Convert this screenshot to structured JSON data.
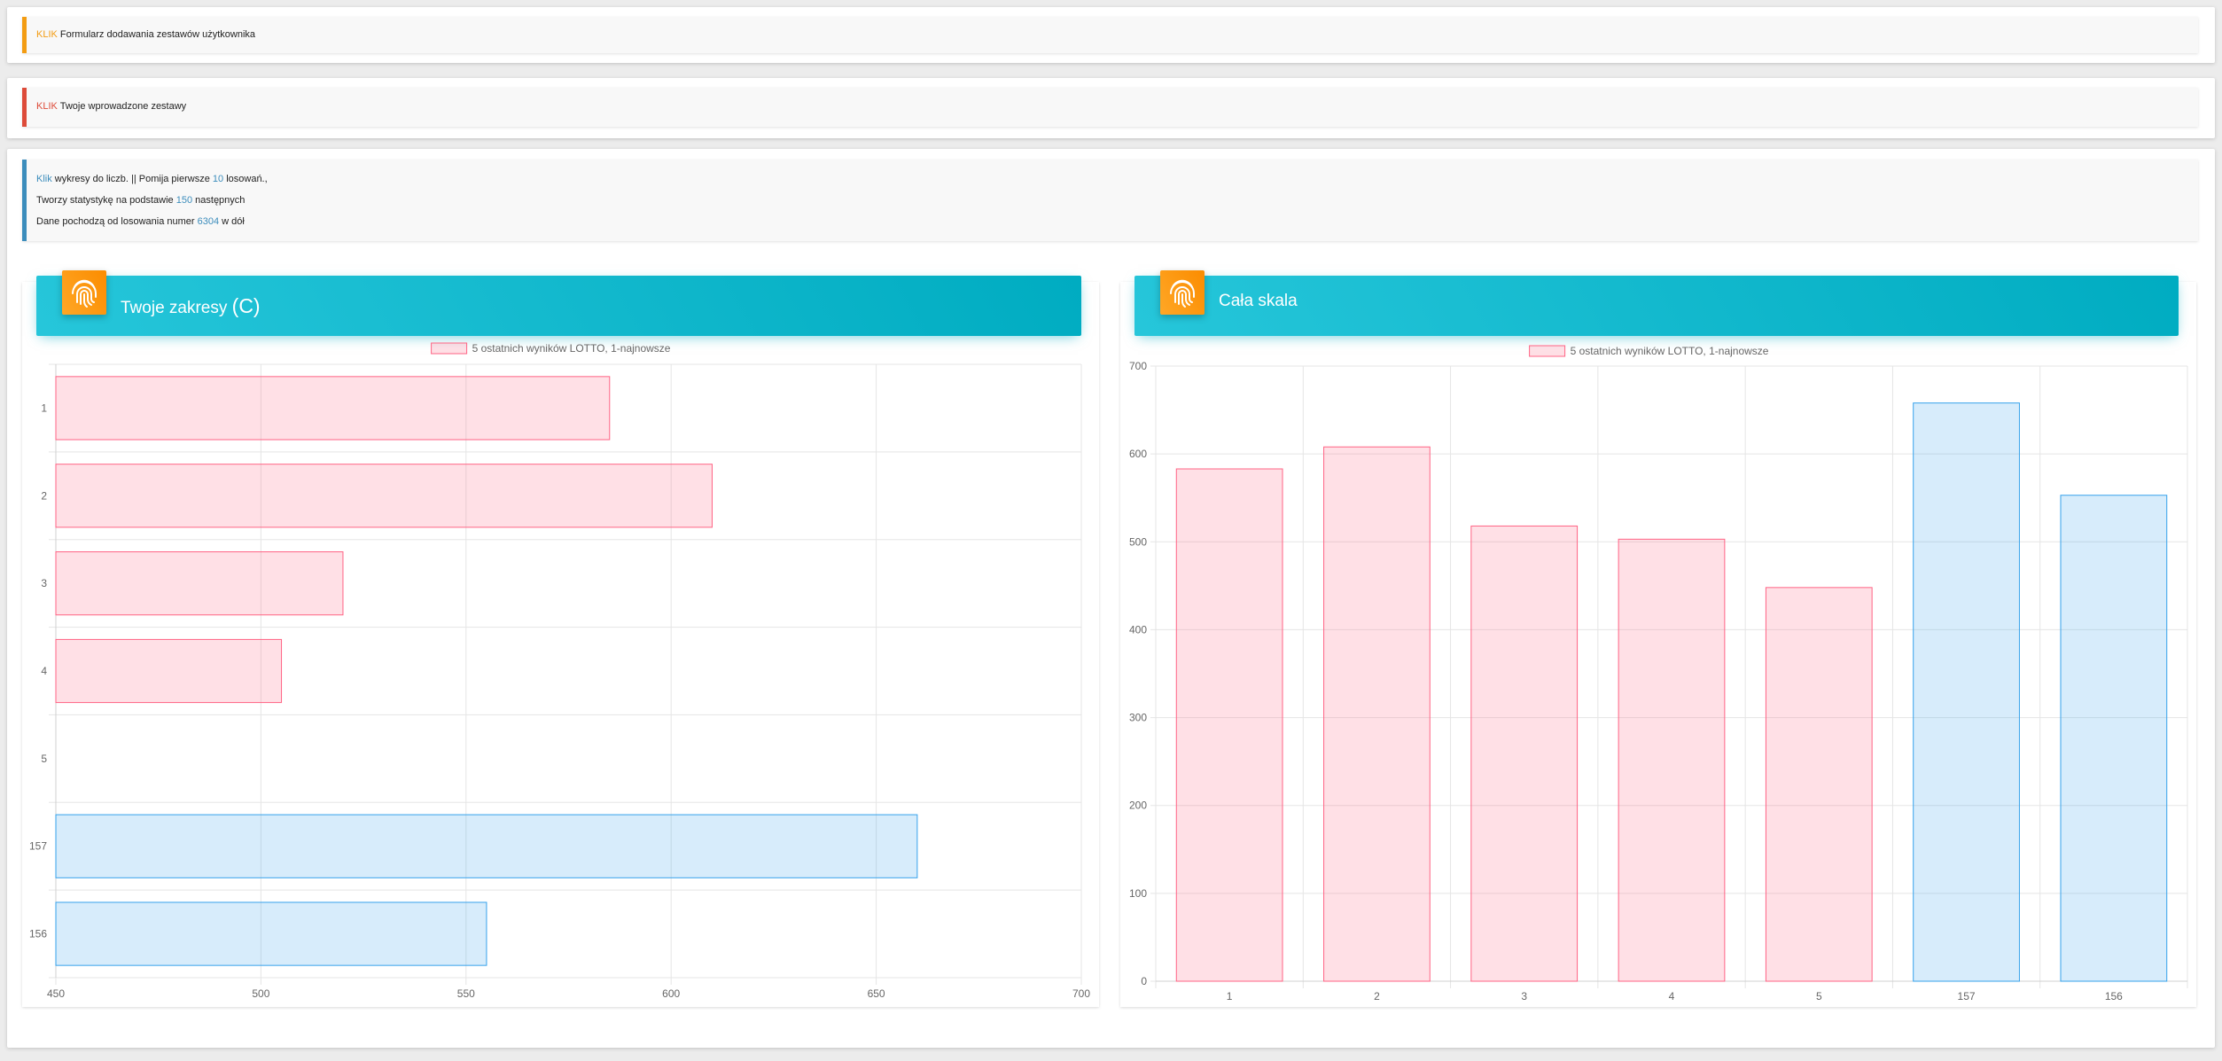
{
  "form_callout": {
    "link": "KLIK",
    "text": " Formularz dodawania zestawów użytkownika"
  },
  "sets_callout": {
    "link": "KLIK",
    "text": " Twoje wprowadzone zestawy"
  },
  "info_callout": {
    "line1": {
      "link": "Klik",
      "a": " wykresy do liczb. || Pomija pierwsze ",
      "n": "10",
      "b": " losowań.,"
    },
    "line2": {
      "a": "Tworzy statystykę na podstawie ",
      "n": "150",
      "b": " następnych"
    },
    "line3": {
      "a": "Dane pochodzą od losowania numer ",
      "n": "6304",
      "b": " w dół"
    }
  },
  "colors": {
    "accent_orange": "#f39c12",
    "accent_red": "#dd4b39",
    "accent_blue": "#3c8dbc",
    "header_cyan": "#00acc1",
    "pink_fill": "rgba(255,99,132,0.2)",
    "pink_border": "rgba(255,99,132,1)",
    "blue_fill": "rgba(54,162,235,0.2)",
    "blue_border": "rgba(54,162,235,1)"
  },
  "cards": {
    "ranges": {
      "title": "Twoje zakresy ",
      "title_suffix": "(C)",
      "icon": "fingerprint-icon"
    },
    "scale": {
      "title": "Cała skala",
      "icon": "fingerprint-icon"
    }
  },
  "chart_data": [
    {
      "type": "bar",
      "orientation": "horizontal",
      "title": "Twoje zakresy (C)",
      "legend": "5 ostatnich wyników LOTTO, 1-najnowsze",
      "legend_position": "top",
      "categories": [
        "1",
        "2",
        "3",
        "4",
        "5",
        "157",
        "156"
      ],
      "values": [
        585,
        610,
        520,
        505,
        null,
        660,
        555
      ],
      "bar_colors": [
        "pink",
        "pink",
        "pink",
        "pink",
        "pink",
        "blue",
        "blue"
      ],
      "xlim": [
        450,
        700
      ],
      "x_ticks": [
        "450",
        "500",
        "550",
        "600",
        "650",
        "700"
      ],
      "grid": true
    },
    {
      "type": "bar",
      "orientation": "vertical",
      "title": "Cała skala",
      "legend": "5 ostatnich wyników LOTTO, 1-najnowsze",
      "legend_position": "top",
      "categories": [
        "1",
        "2",
        "3",
        "4",
        "5",
        "157",
        "156"
      ],
      "values": [
        583,
        608,
        518,
        503,
        448,
        658,
        553
      ],
      "bar_colors": [
        "pink",
        "pink",
        "pink",
        "pink",
        "pink",
        "blue",
        "blue"
      ],
      "ylim": [
        0,
        700
      ],
      "y_ticks": [
        "0",
        "100",
        "200",
        "300",
        "400",
        "500",
        "600",
        "700"
      ],
      "grid": true
    }
  ]
}
